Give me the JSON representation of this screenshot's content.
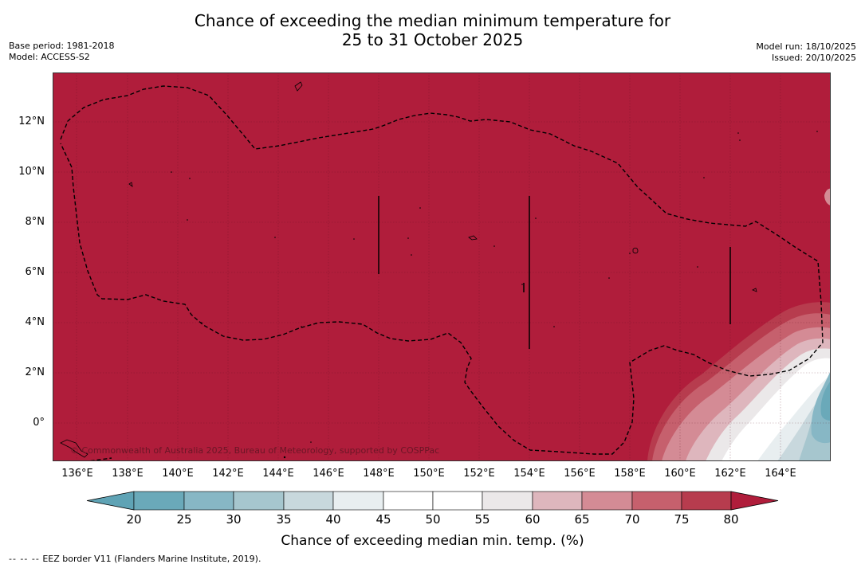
{
  "header": {
    "title_line1": "Chance of exceeding the median minimum temperature for",
    "title_line2": "25 to 31 October 2025",
    "base_period": "Base period: 1981-2018",
    "model": "Model: ACCESS-S2",
    "model_run": "Model run: 18/10/2025",
    "issued": "Issued: 20/10/2025"
  },
  "map": {
    "latitude_labels": [
      "12°N",
      "10°N",
      "8°N",
      "6°N",
      "4°N",
      "2°N",
      "0°"
    ],
    "longitude_labels": [
      "136°E",
      "138°E",
      "140°E",
      "142°E",
      "144°E",
      "146°E",
      "148°E",
      "150°E",
      "152°E",
      "154°E",
      "156°E",
      "158°E",
      "160°E",
      "162°E",
      "164°E"
    ],
    "dominant_category": "80+ %",
    "copyright": "© Commonwealth of Australia 2025, Bureau of Meteorology, supported by COSPPac"
  },
  "colorbar": {
    "ticks": [
      "20",
      "25",
      "30",
      "35",
      "40",
      "45",
      "50",
      "55",
      "60",
      "65",
      "70",
      "75",
      "80"
    ],
    "colors": [
      "#5fa3b5",
      "#6aa9b9",
      "#87b7c5",
      "#a6c6ce",
      "#c8d8dd",
      "#e8eef0",
      "#ffffff",
      "#ffffff",
      "#ebe8e9",
      "#deb6bd",
      "#d48b95",
      "#c6606d",
      "#b73c4e",
      "#b01d3b"
    ],
    "title": "Chance of exceeding median min. temp. (%)"
  },
  "footnote": {
    "dash": "-- -- --",
    "text": "EEZ border V11 (Flanders Marine Institute, 2019)."
  }
}
